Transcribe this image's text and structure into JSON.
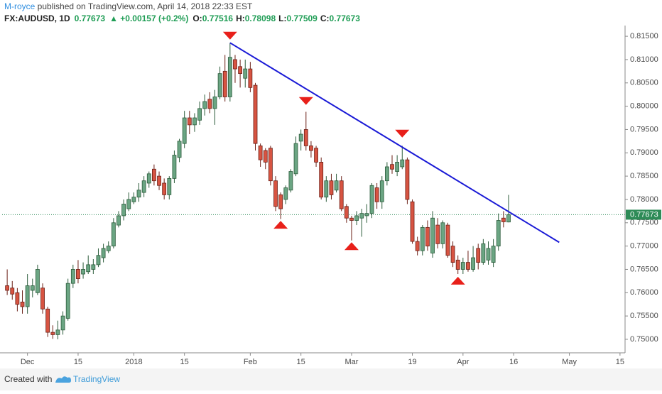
{
  "header": {
    "author": "M-royce",
    "published": " published on TradingView.com, April 14, 2018 22:33 EST",
    "symbol": "FX:AUDUSD, 1D",
    "last": "0.77673",
    "change": "▲ +0.00157 (+0.2%)",
    "ohlc": [
      {
        "label": "O:",
        "value": "0.77516"
      },
      {
        "label": "H:",
        "value": "0.78098"
      },
      {
        "label": "L:",
        "value": "0.77509"
      },
      {
        "label": "C:",
        "value": "0.77673"
      }
    ]
  },
  "footer": {
    "created": "Created with",
    "brand": "TradingView"
  },
  "chart_data": {
    "type": "candlestick",
    "up_color": "#6ba583",
    "down_color": "#d75442",
    "up_border": "#2b5b3a",
    "down_border": "#6a1f16",
    "x": [
      "2017-11-27",
      "2017-11-28",
      "2017-11-29",
      "2017-11-30",
      "2017-12-01",
      "2017-12-04",
      "2017-12-05",
      "2017-12-06",
      "2017-12-07",
      "2017-12-08",
      "2017-12-11",
      "2017-12-12",
      "2017-12-13",
      "2017-12-14",
      "2017-12-15",
      "2017-12-18",
      "2017-12-19",
      "2017-12-20",
      "2017-12-21",
      "2017-12-22",
      "2017-12-25",
      "2017-12-26",
      "2017-12-27",
      "2017-12-28",
      "2017-12-29",
      "2018-01-01",
      "2018-01-02",
      "2018-01-03",
      "2018-01-04",
      "2018-01-05",
      "2018-01-08",
      "2018-01-09",
      "2018-01-10",
      "2018-01-11",
      "2018-01-12",
      "2018-01-15",
      "2018-01-16",
      "2018-01-17",
      "2018-01-18",
      "2018-01-19",
      "2018-01-22",
      "2018-01-23",
      "2018-01-24",
      "2018-01-25",
      "2018-01-26",
      "2018-01-29",
      "2018-01-30",
      "2018-01-31",
      "2018-02-01",
      "2018-02-02",
      "2018-02-05",
      "2018-02-06",
      "2018-02-07",
      "2018-02-08",
      "2018-02-09",
      "2018-02-12",
      "2018-02-13",
      "2018-02-14",
      "2018-02-15",
      "2018-02-16",
      "2018-02-19",
      "2018-02-20",
      "2018-02-21",
      "2018-02-22",
      "2018-02-23",
      "2018-02-26",
      "2018-02-27",
      "2018-02-28",
      "2018-03-01",
      "2018-03-02",
      "2018-03-05",
      "2018-03-06",
      "2018-03-07",
      "2018-03-08",
      "2018-03-09",
      "2018-03-12",
      "2018-03-13",
      "2018-03-14",
      "2018-03-15",
      "2018-03-16",
      "2018-03-19",
      "2018-03-20",
      "2018-03-21",
      "2018-03-22",
      "2018-03-23",
      "2018-03-26",
      "2018-03-27",
      "2018-03-28",
      "2018-03-29",
      "2018-03-30",
      "2018-04-02",
      "2018-04-03",
      "2018-04-04",
      "2018-04-05",
      "2018-04-06",
      "2018-04-09",
      "2018-04-10",
      "2018-04-11",
      "2018-04-12",
      "2018-04-13"
    ],
    "open": [
      0.7615,
      0.761,
      0.76,
      0.758,
      0.757,
      0.7605,
      0.76,
      0.761,
      0.7565,
      0.7515,
      0.751,
      0.752,
      0.7545,
      0.762,
      0.765,
      0.764,
      0.7645,
      0.765,
      0.766,
      0.7675,
      0.769,
      0.77,
      0.7745,
      0.7765,
      0.778,
      0.7795,
      0.7805,
      0.7815,
      0.7835,
      0.7865,
      0.785,
      0.7835,
      0.781,
      0.7845,
      0.789,
      0.792,
      0.7975,
      0.796,
      0.797,
      0.7995,
      0.8015,
      0.7995,
      0.802,
      0.8075,
      0.802,
      0.81,
      0.8085,
      0.806,
      0.808,
      0.8045,
      0.7915,
      0.7905,
      0.791,
      0.784,
      0.781,
      0.78,
      0.782,
      0.7855,
      0.7925,
      0.795,
      0.7915,
      0.791,
      0.788,
      0.7805,
      0.784,
      0.782,
      0.784,
      0.7785,
      0.776,
      0.7755,
      0.776,
      0.7765,
      0.777,
      0.7825,
      0.7795,
      0.784,
      0.7875,
      0.786,
      0.787,
      0.7885,
      0.7795,
      0.771,
      0.769,
      0.774,
      0.7685,
      0.7745,
      0.7705,
      0.7745,
      0.77,
      0.767,
      0.765,
      0.7665,
      0.765,
      0.7695,
      0.7665,
      0.767,
      0.7665,
      0.77,
      0.776,
      0.77516
    ],
    "high": [
      0.765,
      0.7625,
      0.761,
      0.7605,
      0.764,
      0.763,
      0.766,
      0.762,
      0.757,
      0.753,
      0.754,
      0.756,
      0.763,
      0.766,
      0.767,
      0.7665,
      0.768,
      0.7672,
      0.7695,
      0.7705,
      0.771,
      0.776,
      0.7775,
      0.78,
      0.7815,
      0.7815,
      0.7835,
      0.785,
      0.786,
      0.7875,
      0.786,
      0.7845,
      0.785,
      0.7905,
      0.793,
      0.799,
      0.799,
      0.7985,
      0.801,
      0.8025,
      0.803,
      0.8035,
      0.8085,
      0.811,
      0.8136,
      0.811,
      0.81,
      0.81,
      0.8095,
      0.805,
      0.792,
      0.791,
      0.7915,
      0.785,
      0.7815,
      0.783,
      0.7865,
      0.7935,
      0.795,
      0.7988,
      0.7925,
      0.7915,
      0.789,
      0.785,
      0.7855,
      0.7855,
      0.785,
      0.779,
      0.7765,
      0.7775,
      0.778,
      0.779,
      0.7835,
      0.7835,
      0.785,
      0.788,
      0.7895,
      0.7895,
      0.7915,
      0.789,
      0.78,
      0.772,
      0.7745,
      0.7755,
      0.7775,
      0.776,
      0.7755,
      0.775,
      0.771,
      0.768,
      0.7675,
      0.769,
      0.77,
      0.7705,
      0.7715,
      0.771,
      0.7715,
      0.777,
      0.7775,
      0.78098
    ],
    "low": [
      0.7595,
      0.7585,
      0.756,
      0.7555,
      0.7555,
      0.759,
      0.7595,
      0.7555,
      0.7505,
      0.7501,
      0.75,
      0.751,
      0.754,
      0.761,
      0.762,
      0.763,
      0.764,
      0.764,
      0.7655,
      0.7665,
      0.7685,
      0.7695,
      0.774,
      0.7755,
      0.7775,
      0.779,
      0.7795,
      0.7805,
      0.7825,
      0.783,
      0.782,
      0.78,
      0.78,
      0.7835,
      0.788,
      0.791,
      0.794,
      0.7945,
      0.796,
      0.798,
      0.7985,
      0.796,
      0.8015,
      0.801,
      0.801,
      0.805,
      0.804,
      0.804,
      0.803,
      0.7905,
      0.787,
      0.7865,
      0.783,
      0.7775,
      0.7758,
      0.779,
      0.7815,
      0.785,
      0.7905,
      0.7905,
      0.789,
      0.787,
      0.78,
      0.7795,
      0.78,
      0.7815,
      0.7775,
      0.775,
      0.7712,
      0.7745,
      0.772,
      0.775,
      0.776,
      0.778,
      0.778,
      0.783,
      0.7855,
      0.785,
      0.7865,
      0.779,
      0.7705,
      0.768,
      0.768,
      0.769,
      0.7675,
      0.7695,
      0.7695,
      0.7675,
      0.7655,
      0.764,
      0.764,
      0.7645,
      0.7645,
      0.765,
      0.766,
      0.766,
      0.7655,
      0.769,
      0.774,
      0.77509
    ],
    "close": [
      0.7605,
      0.7597,
      0.7575,
      0.757,
      0.7615,
      0.7615,
      0.765,
      0.7565,
      0.7515,
      0.751,
      0.752,
      0.755,
      0.762,
      0.765,
      0.763,
      0.765,
      0.766,
      0.766,
      0.768,
      0.7695,
      0.77,
      0.775,
      0.7765,
      0.779,
      0.78,
      0.7805,
      0.782,
      0.784,
      0.7855,
      0.784,
      0.783,
      0.781,
      0.7845,
      0.7895,
      0.7925,
      0.7975,
      0.796,
      0.7975,
      0.7995,
      0.801,
      0.7995,
      0.802,
      0.807,
      0.802,
      0.8105,
      0.808,
      0.807,
      0.808,
      0.804,
      0.792,
      0.7885,
      0.788,
      0.784,
      0.7785,
      0.778,
      0.7825,
      0.786,
      0.792,
      0.794,
      0.7915,
      0.7905,
      0.788,
      0.7805,
      0.784,
      0.781,
      0.784,
      0.778,
      0.776,
      0.7755,
      0.7765,
      0.777,
      0.777,
      0.783,
      0.7795,
      0.784,
      0.787,
      0.7865,
      0.788,
      0.7885,
      0.78,
      0.771,
      0.769,
      0.774,
      0.77,
      0.776,
      0.7705,
      0.775,
      0.768,
      0.7665,
      0.765,
      0.7665,
      0.765,
      0.7675,
      0.7665,
      0.7705,
      0.7695,
      0.77,
      0.7755,
      0.7752,
      0.77673
    ],
    "xlim": [
      "2017-11-24",
      "2018-05-16"
    ],
    "xticks": [
      {
        "value": "2017-12-01",
        "label": "Dec"
      },
      {
        "value": "2017-12-15",
        "label": "15"
      },
      {
        "value": "2018-01-01",
        "label": "2018"
      },
      {
        "value": "2018-01-15",
        "label": "15"
      },
      {
        "value": "2018-02-01",
        "label": "Feb"
      },
      {
        "value": "2018-02-15",
        "label": "15"
      },
      {
        "value": "2018-03-01",
        "label": "Mar"
      },
      {
        "value": "2018-03-19",
        "label": "19"
      },
      {
        "value": "2018-04-02",
        "label": "Apr"
      },
      {
        "value": "2018-04-16",
        "label": "16"
      },
      {
        "value": "2018-05-01",
        "label": "May"
      },
      {
        "value": "2018-05-15",
        "label": "15"
      }
    ],
    "ylim": [
      0.7471,
      0.8173
    ],
    "yticks": [
      {
        "value": 0.75,
        "label": "0.75000"
      },
      {
        "value": 0.755,
        "label": "0.75500"
      },
      {
        "value": 0.76,
        "label": "0.76000"
      },
      {
        "value": 0.765,
        "label": "0.76500"
      },
      {
        "value": 0.77,
        "label": "0.77000"
      },
      {
        "value": 0.775,
        "label": "0.77500"
      },
      {
        "value": 0.78,
        "label": "0.78000"
      },
      {
        "value": 0.785,
        "label": "0.78500"
      },
      {
        "value": 0.79,
        "label": "0.79000"
      },
      {
        "value": 0.795,
        "label": "0.79500"
      },
      {
        "value": 0.8,
        "label": "0.80000"
      },
      {
        "value": 0.805,
        "label": "0.80500"
      },
      {
        "value": 0.81,
        "label": "0.81000"
      },
      {
        "value": 0.815,
        "label": "0.81500"
      }
    ],
    "last_price": 0.77673,
    "last_price_color": "#2e8b57",
    "trendline": {
      "color": "#1a1ad6",
      "x": [
        "2018-01-26",
        "2018-04-27"
      ],
      "values": [
        0.8136,
        0.7708
      ]
    },
    "marker_color": "#e8201a",
    "markers": [
      {
        "shape": "down",
        "x": "2018-01-26",
        "value": 0.8152
      },
      {
        "shape": "down",
        "x": "2018-02-16",
        "value": 0.8012
      },
      {
        "shape": "down",
        "x": "2018-03-15",
        "value": 0.7942
      },
      {
        "shape": "up",
        "x": "2018-02-09",
        "value": 0.7745
      },
      {
        "shape": "up",
        "x": "2018-03-01",
        "value": 0.7699
      },
      {
        "shape": "up",
        "x": "2018-03-30",
        "value": 0.7625
      }
    ]
  }
}
